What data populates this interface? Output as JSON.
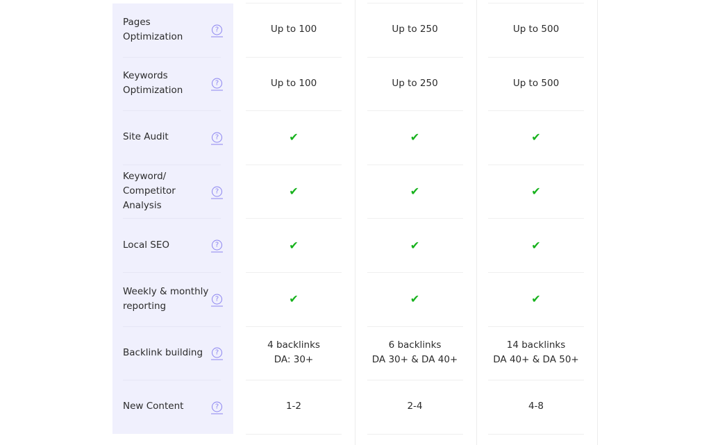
{
  "colors": {
    "sidebar_bg": "#f0f0fd",
    "check": "#17b21d",
    "help_icon": "#8b84f0"
  },
  "rows": [
    {
      "label": "Pages Optimization",
      "values": [
        "Up to 100",
        "Up to 250",
        "Up to 500"
      ]
    },
    {
      "label": "Keywords Optimization",
      "values": [
        "Up to 100",
        "Up to 250",
        "Up to 500"
      ]
    },
    {
      "label": "Site Audit",
      "values": [
        "check",
        "check",
        "check"
      ]
    },
    {
      "label": "Keyword/ Competitor Analysis",
      "values": [
        "check",
        "check",
        "check"
      ]
    },
    {
      "label": "Local SEO",
      "values": [
        "check",
        "check",
        "check"
      ]
    },
    {
      "label": "Weekly & monthly reporting",
      "values": [
        "check",
        "check",
        "check"
      ]
    },
    {
      "label": "Backlink building",
      "values": [
        "4 backlinks\nDA: 30+",
        "6 backlinks\nDA 30+ & DA 40+",
        "14 backlinks\nDA 40+ & DA 50+"
      ]
    },
    {
      "label": "New Content",
      "values": [
        "1-2",
        "2-4",
        "4-8"
      ]
    }
  ],
  "help_icon": "?",
  "check_icon": "✔"
}
